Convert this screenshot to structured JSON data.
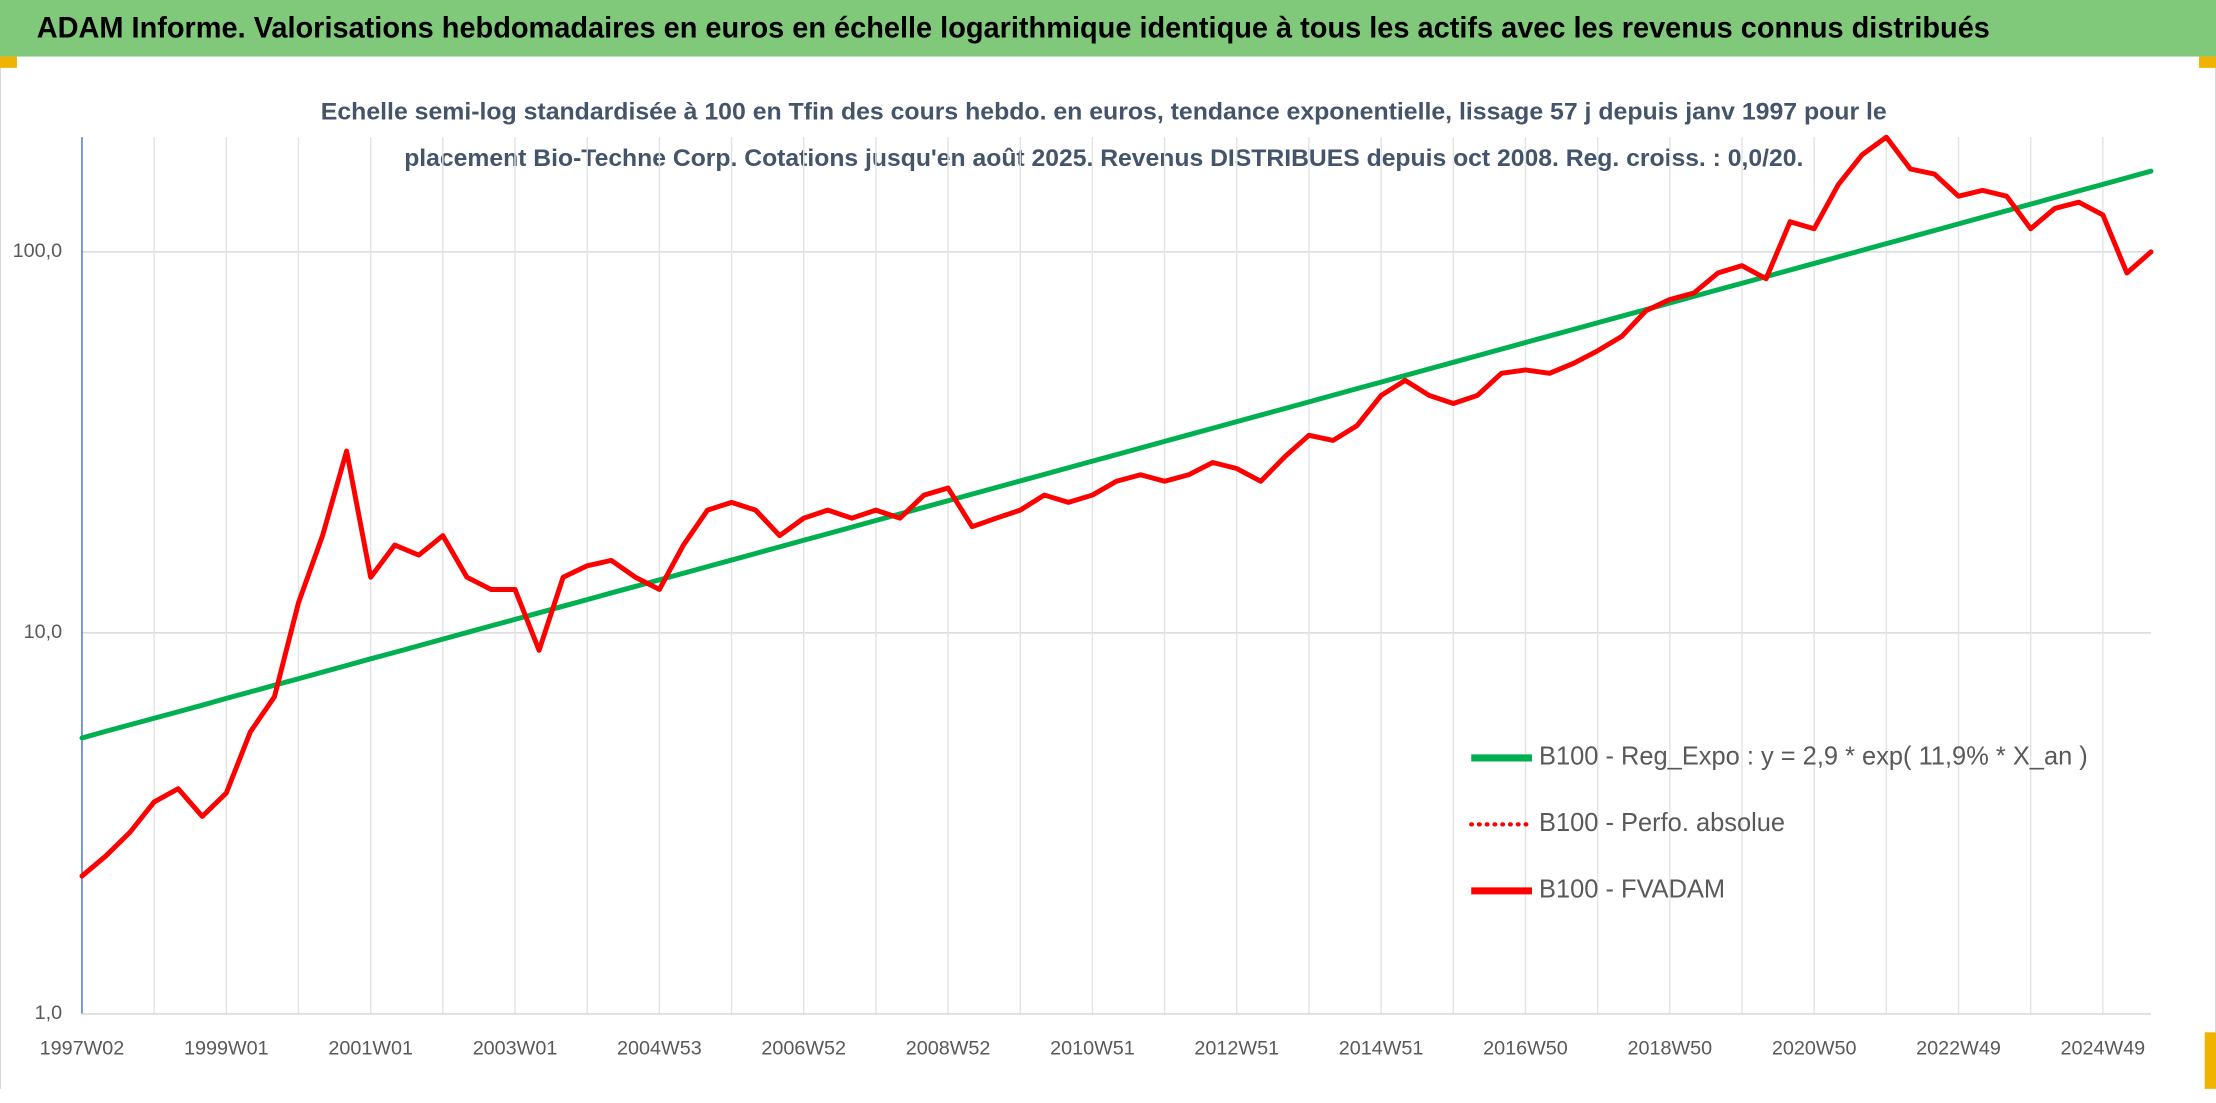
{
  "chart_data": {
    "type": "line",
    "title": "ADAM Informe. Valorisations hebdomadaires en euros en échelle logarithmique identique à tous les actifs avec les revenus connus distribués",
    "subtitle": [
      "Echelle semi-log standardisée à 100 en Tfin des cours hebdo. en euros, tendance exponentielle, lissage 57 j depuis janv 1997 pour le",
      "placement Bio-Techne Corp. Cotations jusqu'en août 2025. Revenus DISTRIBUES depuis oct 2008. Reg. croiss. : 0,0/20."
    ],
    "log_scale": true,
    "grid": true,
    "legend": "right",
    "ylim": [
      1,
      200
    ],
    "yticks": [
      {
        "value": 1,
        "label": "1,0"
      },
      {
        "value": 10,
        "label": "10,0"
      },
      {
        "value": 100,
        "label": "100,0"
      }
    ],
    "categories": [
      "1997W02",
      null,
      null,
      null,
      null,
      null,
      "1999W01",
      null,
      null,
      null,
      null,
      null,
      "2001W01",
      null,
      null,
      null,
      null,
      null,
      "2003W01",
      null,
      null,
      null,
      null,
      null,
      "2004W53",
      null,
      null,
      null,
      null,
      null,
      "2006W52",
      null,
      null,
      null,
      null,
      null,
      "2008W52",
      null,
      null,
      null,
      null,
      null,
      "2010W51",
      null,
      null,
      null,
      null,
      null,
      "2012W51",
      null,
      null,
      null,
      null,
      null,
      "2014W51",
      null,
      null,
      null,
      null,
      null,
      "2016W50",
      null,
      null,
      null,
      null,
      null,
      "2018W50",
      null,
      null,
      null,
      null,
      null,
      "2020W50",
      null,
      null,
      null,
      null,
      null,
      "2022W49",
      null,
      null,
      null,
      null,
      null,
      "2024W49",
      null,
      null
    ],
    "series": [
      {
        "name": "B100 - Reg_Expo : y = 2,9 * exp( 11,9% *  X_an )",
        "color": "#00b050",
        "style": "solid",
        "values": [
          5.3,
          5.52,
          5.74,
          5.97,
          6.21,
          6.46,
          6.73,
          7.0,
          7.29,
          7.58,
          7.89,
          8.21,
          8.55,
          8.89,
          9.25,
          9.63,
          10.02,
          10.43,
          10.85,
          11.29,
          11.75,
          12.23,
          12.73,
          13.24,
          13.78,
          14.34,
          14.92,
          15.53,
          16.16,
          16.82,
          17.5,
          18.21,
          18.95,
          19.72,
          20.52,
          21.36,
          22.22,
          23.13,
          24.07,
          25.05,
          26.06,
          27.12,
          28.23,
          29.37,
          30.57,
          31.81,
          33.1,
          34.45,
          35.85,
          37.3,
          38.82,
          40.4,
          42.04,
          43.75,
          45.52,
          47.37,
          49.3,
          51.3,
          53.39,
          55.56,
          57.82,
          60.17,
          62.61,
          65.16,
          67.8,
          70.56,
          73.43,
          76.41,
          79.52,
          82.75,
          86.11,
          89.61,
          93.25,
          97.04,
          100.99,
          105.09,
          109.36,
          113.81,
          118.43,
          123.24,
          128.25,
          133.46,
          138.88,
          144.53,
          150.4,
          156.51,
          162.87
        ]
      },
      {
        "name": "B100 - Perfo. absolue",
        "color": "#ff0000",
        "style": "dotted",
        "values": [
          2.3,
          2.6,
          3.0,
          3.6,
          3.9,
          3.3,
          3.8,
          5.5,
          6.8,
          12,
          18,
          30,
          14,
          17,
          16,
          18,
          14,
          13,
          13,
          9,
          14,
          15,
          15.5,
          14,
          13,
          17,
          21,
          22,
          21,
          18,
          20,
          21,
          20,
          21,
          20,
          23,
          24,
          19,
          20,
          21,
          23,
          22,
          23,
          25,
          26,
          25,
          26,
          28,
          27,
          25,
          29,
          33,
          32,
          35,
          42,
          46,
          42,
          40,
          42,
          48,
          49,
          48,
          51,
          55,
          60,
          70,
          75,
          78,
          88,
          92,
          85,
          120,
          115,
          150,
          180,
          200,
          165,
          160,
          140,
          145,
          140,
          115,
          130,
          135,
          125,
          88,
          100
        ]
      },
      {
        "name": "B100 - FVADAM",
        "color": "#ff0000",
        "style": "solid",
        "values": [
          2.3,
          2.6,
          3.0,
          3.6,
          3.9,
          3.3,
          3.8,
          5.5,
          6.8,
          12,
          18,
          30,
          14,
          17,
          16,
          18,
          14,
          13,
          13,
          9,
          14,
          15,
          15.5,
          14,
          13,
          17,
          21,
          22,
          21,
          18,
          20,
          21,
          20,
          21,
          20,
          23,
          24,
          19,
          20,
          21,
          23,
          22,
          23,
          25,
          26,
          25,
          26,
          28,
          27,
          25,
          29,
          33,
          32,
          35,
          42,
          46,
          42,
          40,
          42,
          48,
          49,
          48,
          51,
          55,
          60,
          70,
          75,
          78,
          88,
          92,
          85,
          120,
          115,
          150,
          180,
          200,
          165,
          160,
          140,
          145,
          140,
          115,
          130,
          135,
          125,
          88,
          100
        ]
      }
    ]
  }
}
